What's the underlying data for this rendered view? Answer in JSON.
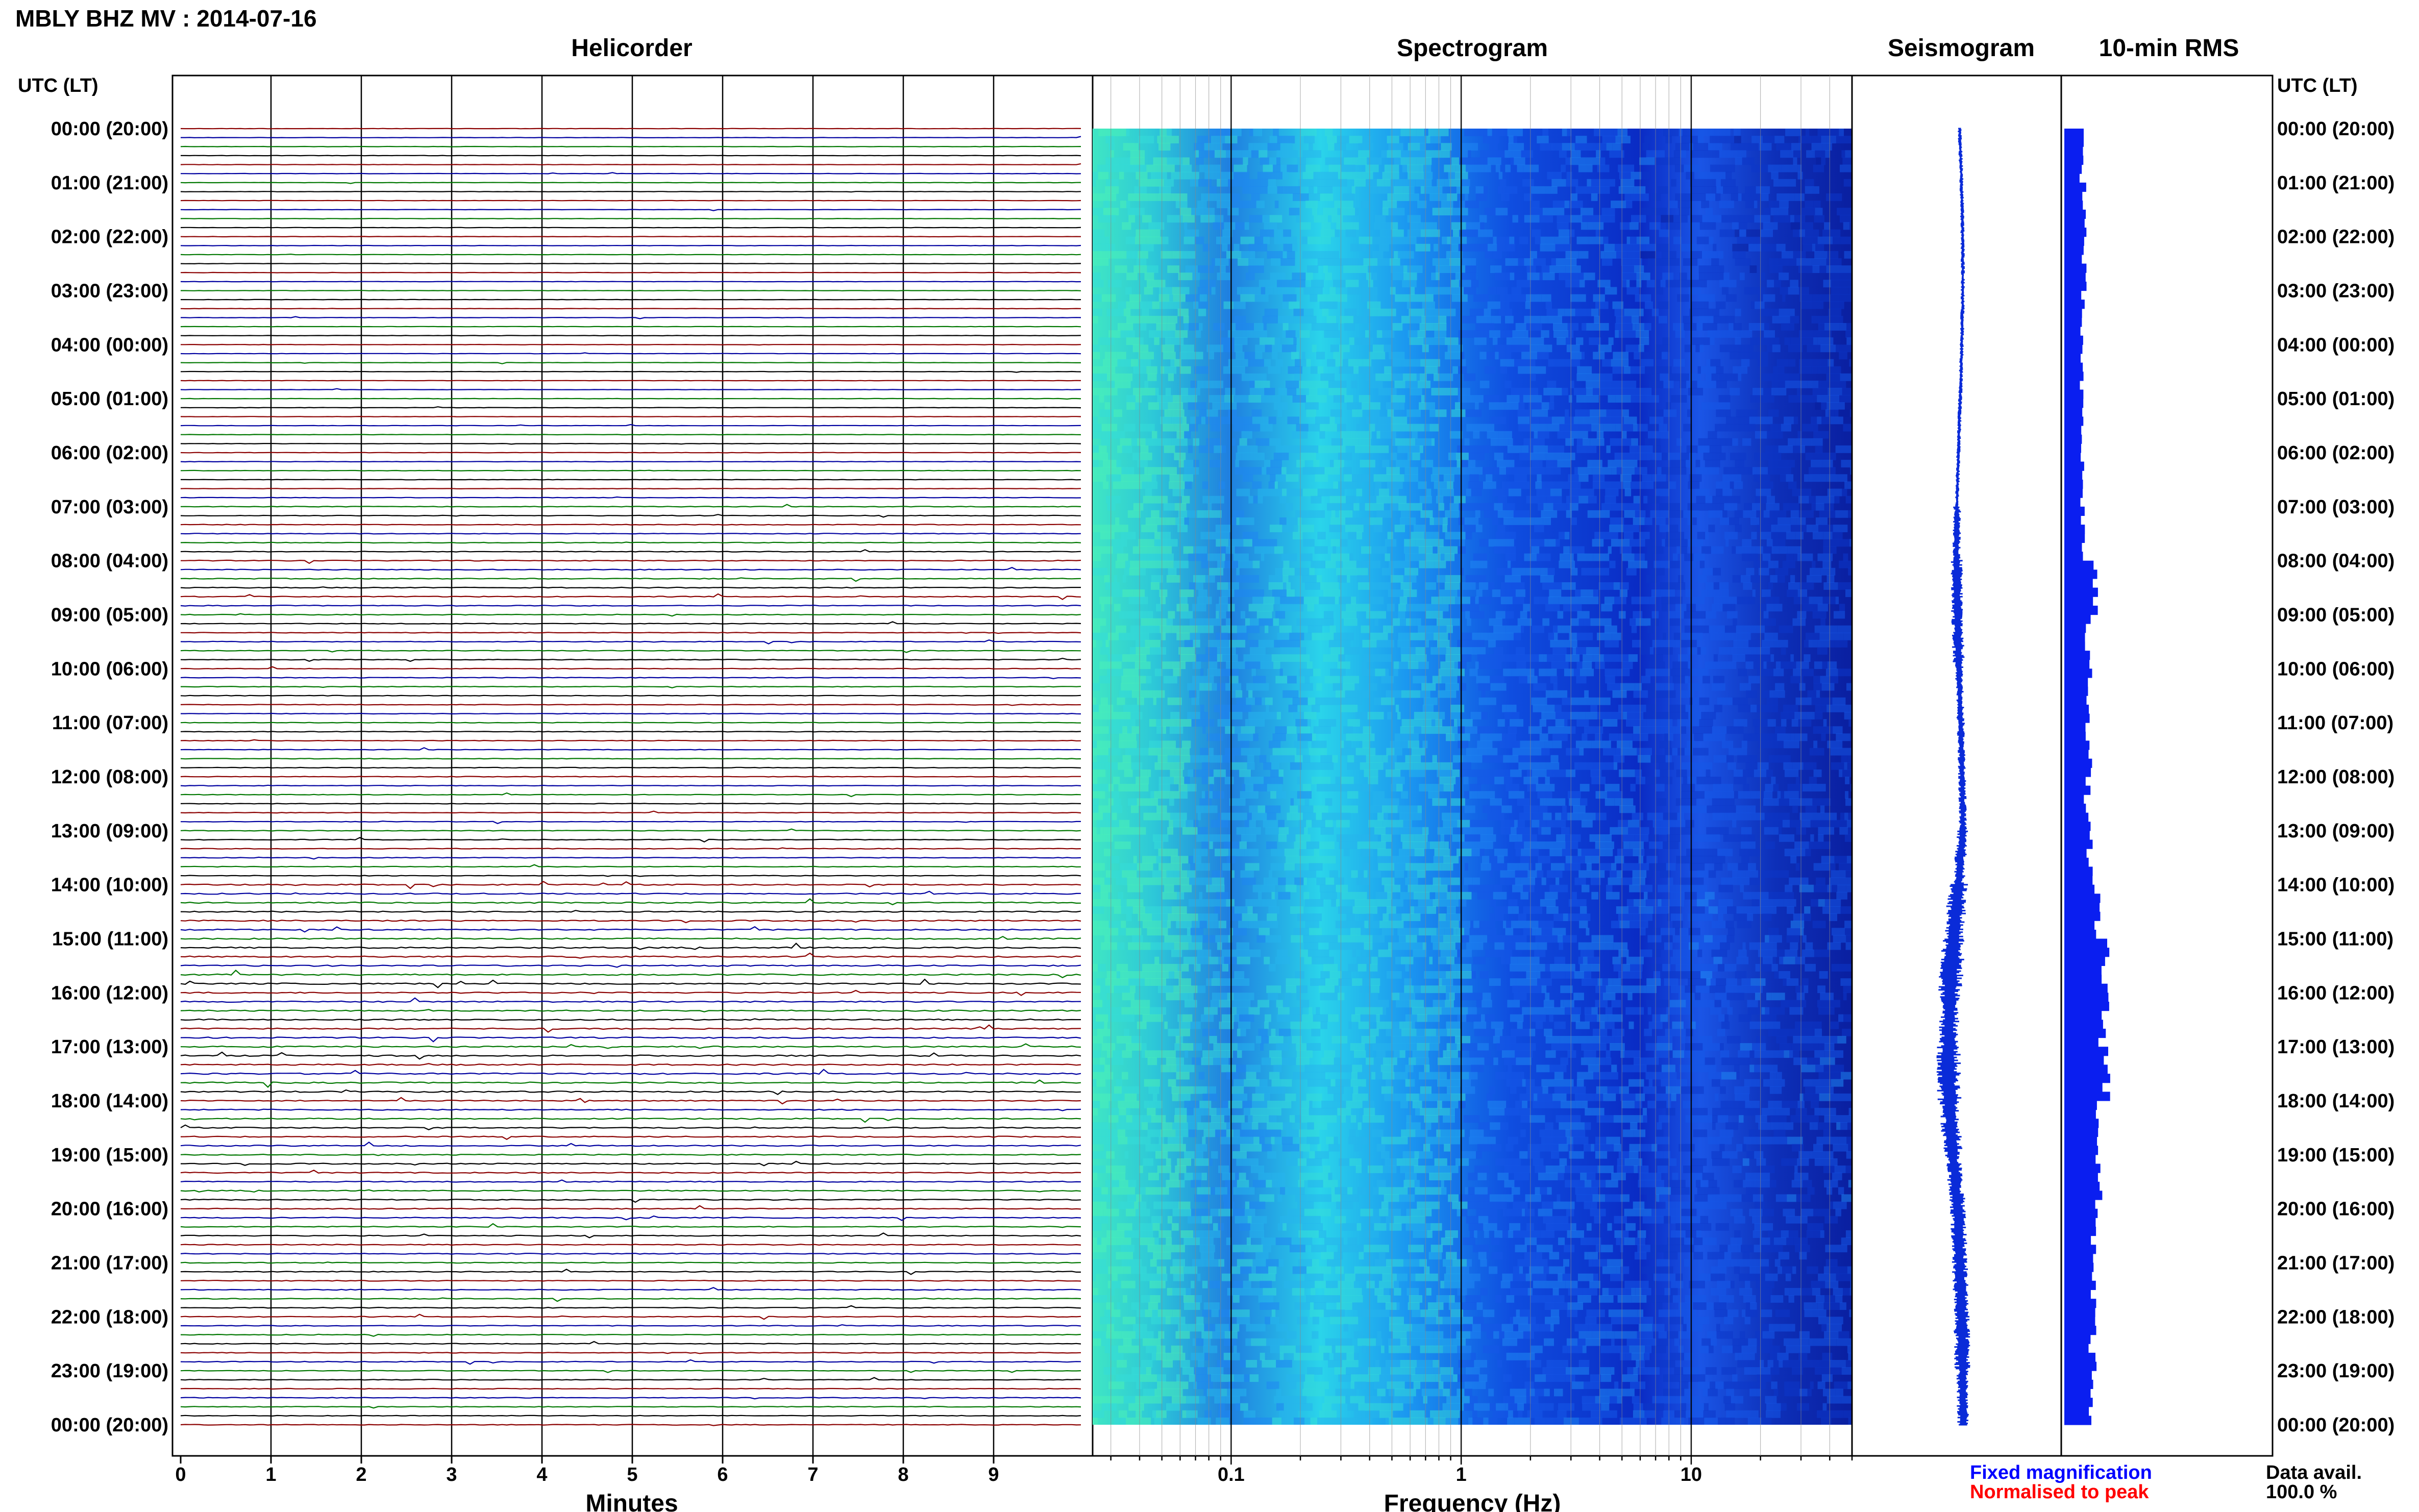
{
  "title": "MBLY BHZ MV : 2014-07-16",
  "headers": {
    "helicorder": "Helicorder",
    "spectrogram": "Spectrogram",
    "seismogram": "Seismogram",
    "rms": "10-min RMS"
  },
  "time_axis_label": "UTC (LT)",
  "time_labels": [
    "00:00 (20:00)",
    "01:00 (21:00)",
    "02:00 (22:00)",
    "03:00 (23:00)",
    "04:00 (00:00)",
    "05:00 (01:00)",
    "06:00 (02:00)",
    "07:00 (03:00)",
    "08:00 (04:00)",
    "09:00 (05:00)",
    "10:00 (06:00)",
    "11:00 (07:00)",
    "12:00 (08:00)",
    "13:00 (09:00)",
    "14:00 (10:00)",
    "15:00 (11:00)",
    "16:00 (12:00)",
    "17:00 (13:00)",
    "18:00 (14:00)",
    "19:00 (15:00)",
    "20:00 (16:00)",
    "21:00 (17:00)",
    "22:00 (18:00)",
    "23:00 (19:00)",
    "00:00 (20:00)"
  ],
  "helicorder": {
    "xlabel": "Minutes",
    "ticks": [
      "0",
      "1",
      "2",
      "3",
      "4",
      "5",
      "6",
      "7",
      "8",
      "9"
    ],
    "xlim": [
      0,
      10
    ],
    "trace_colors": [
      "#8b0000",
      "#0000a0",
      "#007700",
      "#000000"
    ]
  },
  "spectrogram": {
    "xlabel": "Frequency (Hz)",
    "ticks": [
      "0.1",
      "1",
      "10"
    ],
    "xlim": [
      0.025,
      50
    ],
    "scale": "log"
  },
  "legend": {
    "fixed": "Fixed magnification",
    "normalised": "Normalised to peak",
    "fixed_color": "#0000ff",
    "normalised_color": "#ff0000"
  },
  "availability": {
    "label": "Data avail.",
    "value": "100.0 %"
  },
  "chart_data": [
    {
      "type": "line",
      "name": "Helicorder",
      "x": [
        0,
        10
      ],
      "xlabel": "Minutes",
      "rows_per_hour": 6,
      "hours": 24,
      "activity_by_hour": [
        0.2,
        0.2,
        0.2,
        0.2,
        0.2,
        0.2,
        0.25,
        0.4,
        0.5,
        0.4,
        0.35,
        0.35,
        0.35,
        0.4,
        0.7,
        0.8,
        0.75,
        0.8,
        0.65,
        0.6,
        0.55,
        0.5,
        0.45,
        0.4
      ]
    },
    {
      "type": "heatmap",
      "name": "Spectrogram",
      "xlabel": "Frequency (Hz)",
      "xlim": [
        0.025,
        50
      ],
      "x_scale": "log"
    },
    {
      "type": "line",
      "name": "Seismogram",
      "amplitude_by_hour": [
        0.1,
        0.1,
        0.1,
        0.1,
        0.1,
        0.1,
        0.1,
        0.2,
        0.3,
        0.3,
        0.2,
        0.2,
        0.2,
        0.3,
        0.5,
        0.6,
        0.5,
        0.6,
        0.5,
        0.4,
        0.4,
        0.4,
        0.4,
        0.3
      ]
    },
    {
      "type": "bar",
      "name": "10-min RMS",
      "values_by_hour": [
        35,
        40,
        38,
        35,
        33,
        35,
        35,
        37,
        60,
        45,
        50,
        48,
        45,
        50,
        62,
        80,
        78,
        82,
        70,
        65,
        60,
        58,
        55,
        52
      ]
    }
  ]
}
